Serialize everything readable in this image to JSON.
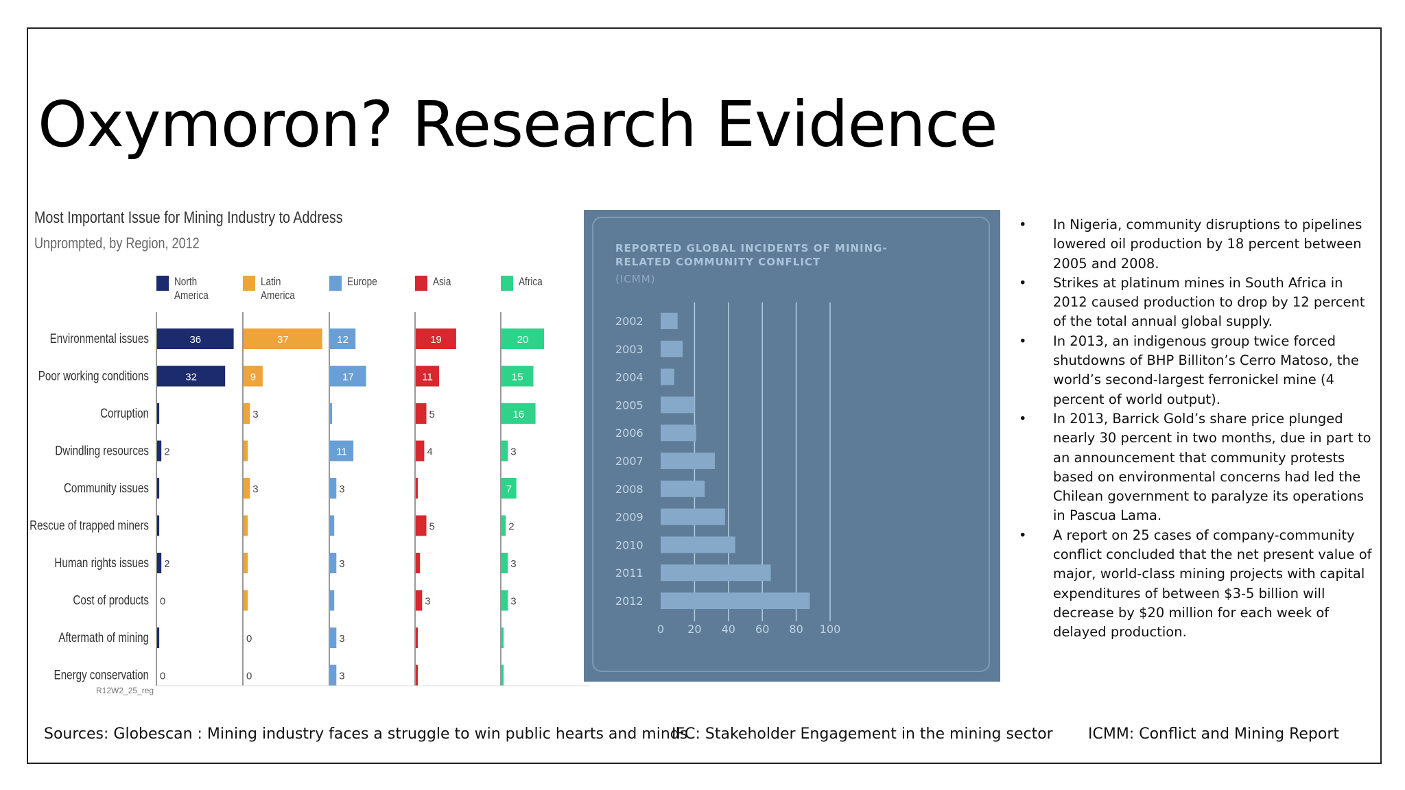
{
  "slide": {
    "title": "Oxymoron?  Research Evidence",
    "sources": [
      "Sources:  Globescan :  Mining industry faces a struggle to win public hearts and minds",
      "IFC:  Stakeholder Engagement in the mining sector",
      "ICMM:  Conflict and Mining Report"
    ]
  },
  "bullets": [
    "In Nigeria, community disruptions to pipelines lowered oil production by 18 percent between 2005 and 2008.",
    "Strikes at platinum mines in South Africa in 2012 caused production to drop by 12 percent of the total annual global supply.",
    "In 2013, an indigenous group twice forced shutdowns of BHP Billiton’s Cerro Matoso, the world’s second-largest ferronickel mine (4 percent of world output).",
    "In 2013, Barrick Gold’s share price plunged nearly 30 percent in two months, due in part to an announcement that community protests based on environmental concerns had led the Chilean government to paralyze its operations in Pascua Lama.",
    "A report on 25 cases of company-community conflict concluded that the net present value of major, world-class mining projects with capital expenditures of between $3-5 billion will decrease by $20 million for each week of delayed production."
  ],
  "bullet_marker": "•",
  "chart_data": [
    {
      "type": "bar",
      "title": "Most Important Issue for Mining Industry to Address",
      "subtitle": "Unprompted, by Region, 2012",
      "source_note": "R12W2_25_reg",
      "categories": [
        "Environmental issues",
        "Poor working conditions",
        "Corruption",
        "Dwindling resources",
        "Community issues",
        "Rescue of trapped miners",
        "Human rights issues",
        "Cost of products",
        "Aftermath of mining",
        "Energy conservation"
      ],
      "series": [
        {
          "name": "North America",
          "color": "#1c2a6e",
          "values": [
            36,
            32,
            1,
            2,
            1,
            1,
            2,
            0,
            1,
            0
          ],
          "labels": [
            "36",
            "32",
            "",
            "2",
            "",
            "",
            "2",
            "0",
            "",
            "0"
          ]
        },
        {
          "name": "Latin America",
          "color": "#efa43a",
          "values": [
            37,
            9,
            3,
            2,
            3,
            2,
            2,
            2,
            0,
            0
          ],
          "labels": [
            "37",
            "9",
            "3",
            "",
            "3",
            "",
            "",
            "",
            "0",
            "0"
          ]
        },
        {
          "name": "Europe",
          "color": "#6a9fd6",
          "values": [
            12,
            17,
            1,
            11,
            3,
            2,
            3,
            2,
            3,
            3
          ],
          "labels": [
            "12",
            "17",
            "",
            "11",
            "3",
            "",
            "3",
            "",
            "3",
            "3"
          ]
        },
        {
          "name": "Asia",
          "color": "#d7272f",
          "values": [
            19,
            11,
            5,
            4,
            1,
            5,
            2,
            3,
            1,
            1
          ],
          "labels": [
            "19",
            "11",
            "5",
            "4",
            "",
            "5",
            "",
            "3",
            "",
            ""
          ]
        },
        {
          "name": "Africa",
          "color": "#2ed38a",
          "values": [
            20,
            15,
            16,
            3,
            7,
            2,
            3,
            3,
            1,
            1
          ],
          "labels": [
            "20",
            "15",
            "16",
            "3",
            "7",
            "2",
            "3",
            "3",
            "",
            ""
          ]
        }
      ]
    },
    {
      "type": "bar",
      "orientation": "horizontal",
      "title": "REPORTED GLOBAL INCIDENTS OF MINING-RELATED COMMUNITY CONFLICT",
      "subtitle": "(ICMM)",
      "categories": [
        "2002",
        "2003",
        "2004",
        "2005",
        "2006",
        "2007",
        "2008",
        "2009",
        "2010",
        "2011",
        "2012"
      ],
      "values": [
        10,
        13,
        8,
        20,
        21,
        32,
        26,
        38,
        44,
        65,
        88
      ],
      "xticks": [
        "0",
        "20",
        "40",
        "60",
        "80",
        "100"
      ],
      "xlim": [
        0,
        100
      ],
      "grid": true,
      "bar_color": "#86a9c9",
      "background": "#5e7c98"
    }
  ]
}
